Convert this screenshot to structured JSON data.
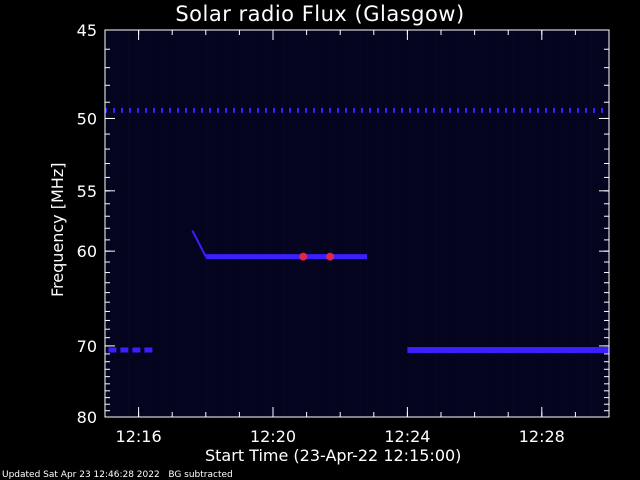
{
  "chart_data": {
    "type": "heatmap",
    "title": "Solar radio Flux (Glasgow)",
    "xlabel": "Start Time (23-Apr-22 12:15:00)",
    "ylabel": "Frequency [MHz]",
    "xlim_minutes_after_12_00": [
      15,
      30
    ],
    "ylim_mhz": [
      80,
      45
    ],
    "y_ticks": [
      "45",
      "50",
      "55",
      "60",
      "70",
      "80"
    ],
    "x_ticks": [
      "12:16",
      "12:20",
      "12:24",
      "12:28"
    ],
    "background_color": "#04041e",
    "burst_color": "#3a1fff",
    "hot_color": "#ff2a2a",
    "features": [
      {
        "name": "interference-49.5",
        "freq_mhz": 49.5,
        "t_start": "12:15",
        "t_end": "12:30",
        "style": "dashed"
      },
      {
        "name": "burst-drift",
        "freq_start_mhz": 58.2,
        "freq_end_mhz": 60.5,
        "t_start": "12:17.6",
        "t_end": "12:18.0"
      },
      {
        "name": "burst-60.5",
        "freq_mhz": 60.5,
        "t_start": "12:18.0",
        "t_end": "12:22.8"
      },
      {
        "name": "band-70.5-a",
        "freq_mhz": 70.5,
        "t_start": "12:15.1",
        "t_end": "12:16.5",
        "style": "dashed"
      },
      {
        "name": "band-70.5-b",
        "freq_mhz": 70.5,
        "t_start": "12:24.0",
        "t_end": "12:30",
        "style": "solid"
      }
    ]
  },
  "footer": {
    "updated": "Updated Sat Apr 23 12:46:28 2022",
    "bg_note": "BG subtracted"
  }
}
